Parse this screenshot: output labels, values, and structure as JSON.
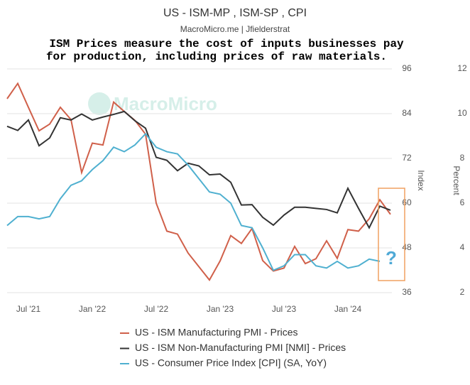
{
  "chart_data": {
    "type": "line",
    "title": "US - ISM-MP , ISM-SP , CPI",
    "subtitle": "MacroMicro.me | Jfielderstrat",
    "annotation": [
      "ISM Prices measure the cost of inputs businesses pay",
      "for production, including prices of raw materials."
    ],
    "watermark": "MacroMicro",
    "question_mark": "?",
    "ylabel": "Index",
    "y2label": "Percent",
    "categories": [
      null,
      null,
      "Jul '21",
      null,
      null,
      null,
      null,
      null,
      "Jan '22",
      null,
      null,
      null,
      null,
      null,
      "Jul '22",
      null,
      null,
      null,
      null,
      null,
      "Jan '23",
      null,
      null,
      null,
      null,
      null,
      "Jul '23",
      null,
      null,
      null,
      null,
      null,
      "Jan '24",
      null,
      null,
      null,
      null
    ],
    "ylim": [
      36,
      96
    ],
    "yticks": [
      36,
      48,
      60,
      72,
      84,
      96
    ],
    "y2lim": [
      2,
      12
    ],
    "y2ticks": [
      2,
      4,
      6,
      8,
      10,
      12
    ],
    "grid": true,
    "series": [
      {
        "name": "US - ISM Manufacturing PMI - Prices",
        "color": "#d0604a",
        "values": [
          88.0,
          92.1,
          85.7,
          79.4,
          81.2,
          85.7,
          82.4,
          68.2,
          76.1,
          75.6,
          87.1,
          84.6,
          82.2,
          78.5,
          60.0,
          52.5,
          51.7,
          46.6,
          43.0,
          39.4,
          44.5,
          51.3,
          49.2,
          53.2,
          44.6,
          41.8,
          42.6,
          48.4,
          43.8,
          45.1,
          49.9,
          45.2,
          52.9,
          52.5,
          55.8,
          60.9,
          57.0
        ]
      },
      {
        "name": "US - ISM Non-Manufacturing PMI [NMI] - Prices",
        "color": "#333333",
        "values": [
          80.6,
          79.5,
          82.3,
          75.4,
          77.5,
          82.9,
          82.3,
          83.9,
          82.3,
          83.1,
          83.8,
          84.6,
          82.1,
          80.1,
          72.3,
          71.5,
          68.7,
          70.7,
          70.0,
          67.6,
          67.8,
          65.6,
          59.5,
          59.6,
          56.2,
          54.1,
          56.8,
          58.9,
          58.9,
          58.6,
          58.3,
          57.4,
          64.0,
          58.6,
          53.4,
          59.2,
          58.1
        ]
      },
      {
        "name": "US - Consumer Price Index [CPI] (SA, YoY)",
        "color": "#4fb0d0",
        "axis": "y2",
        "values": [
          5.0,
          5.4,
          5.4,
          5.3,
          5.4,
          6.2,
          6.8,
          7.0,
          7.5,
          7.9,
          8.5,
          8.3,
          8.6,
          9.1,
          8.5,
          8.3,
          8.2,
          7.7,
          7.1,
          6.5,
          6.4,
          6.0,
          5.0,
          4.9,
          4.0,
          3.0,
          3.2,
          3.7,
          3.7,
          3.2,
          3.1,
          3.4,
          3.1,
          3.2,
          3.5,
          3.4,
          null
        ]
      }
    ]
  }
}
